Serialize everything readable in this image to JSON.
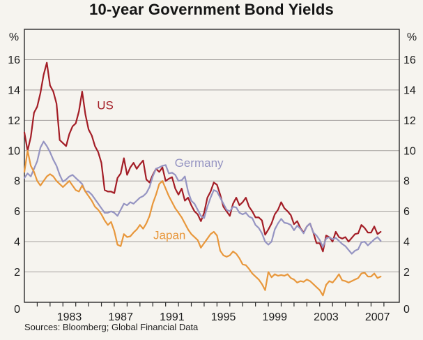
{
  "title": "10-year Government Bond Yields",
  "footer": {
    "sources": "Sources: Bloomberg; Global Financial Data"
  },
  "colors": {
    "background": "#f6f4ef",
    "gridline": "#a29e9c",
    "frame": "#2b2b2b",
    "text": "#1c1c1c",
    "us": "#a31d26",
    "germany": "#9594c2",
    "japan": "#e8973b"
  },
  "chart_data": {
    "type": "line",
    "title": "10-year Government Bond Yields",
    "unit_label": "%",
    "x_start": 1980.0,
    "x_step": 0.25,
    "x_axis": {
      "minor_tick_start": 1981,
      "minor_tick_end": 2008,
      "label_years": [
        1983,
        1987,
        1991,
        1995,
        1999,
        2003,
        2007
      ],
      "labels_centered_mid_year": true
    },
    "y_axis": {
      "min": 0,
      "max": 18,
      "tick_step": 2,
      "labeled_ticks": [
        0,
        2,
        4,
        6,
        8,
        10,
        12,
        14,
        16
      ],
      "grid": true
    },
    "legend_position": "inline-labels",
    "series": [
      {
        "name": "US",
        "color": "#a31d26",
        "label": {
          "text": "US",
          "year": 1986.3,
          "value": 13.0
        },
        "values": [
          11.2,
          10.0,
          10.9,
          12.5,
          12.9,
          13.8,
          15.0,
          15.8,
          14.3,
          13.9,
          13.1,
          10.7,
          10.5,
          10.3,
          11.1,
          11.6,
          11.8,
          12.6,
          13.9,
          12.4,
          11.4,
          11.0,
          10.3,
          9.9,
          9.2,
          7.4,
          7.3,
          7.3,
          7.2,
          8.2,
          8.5,
          9.5,
          8.4,
          8.9,
          9.2,
          8.8,
          9.1,
          9.35,
          8.1,
          7.9,
          8.4,
          8.8,
          8.6,
          8.9,
          8.0,
          8.15,
          8.25,
          7.5,
          7.1,
          7.5,
          6.7,
          6.9,
          6.4,
          6.0,
          5.8,
          5.35,
          5.9,
          6.9,
          7.3,
          7.9,
          7.75,
          7.1,
          6.3,
          6.0,
          5.7,
          6.5,
          6.9,
          6.4,
          6.6,
          6.9,
          6.3,
          6.0,
          5.6,
          5.6,
          5.4,
          4.45,
          4.8,
          5.2,
          5.8,
          6.1,
          6.6,
          6.2,
          6.0,
          5.75,
          5.15,
          5.35,
          4.9,
          4.6,
          5.0,
          5.2,
          4.6,
          3.9,
          3.9,
          3.35,
          4.4,
          4.3,
          4.0,
          4.65,
          4.3,
          4.2,
          4.3,
          4.0,
          4.25,
          4.5,
          4.55,
          5.1,
          4.9,
          4.6,
          4.6,
          5.0,
          4.5,
          4.65
        ]
      },
      {
        "name": "Germany",
        "color": "#9594c2",
        "label": {
          "text": "Germany",
          "year": 1993.6,
          "value": 9.2
        },
        "values": [
          8.2,
          8.5,
          8.3,
          8.8,
          9.3,
          10.2,
          10.6,
          10.3,
          9.9,
          9.4,
          9.0,
          8.4,
          7.95,
          8.1,
          8.3,
          8.4,
          8.2,
          8.0,
          7.8,
          7.3,
          7.3,
          7.1,
          6.8,
          6.5,
          6.2,
          5.9,
          5.9,
          6.0,
          5.9,
          5.7,
          6.1,
          6.5,
          6.4,
          6.6,
          6.5,
          6.7,
          6.9,
          7.0,
          7.2,
          7.6,
          8.3,
          8.8,
          8.9,
          9.0,
          9.05,
          8.5,
          8.55,
          8.4,
          8.0,
          8.05,
          8.3,
          7.3,
          6.7,
          6.5,
          6.1,
          5.7,
          5.55,
          6.3,
          6.9,
          7.4,
          7.3,
          6.9,
          6.5,
          6.1,
          6.0,
          6.3,
          6.25,
          5.9,
          5.8,
          5.9,
          5.65,
          5.55,
          5.1,
          4.9,
          4.55,
          4.0,
          3.8,
          4.0,
          4.8,
          5.2,
          5.5,
          5.25,
          5.2,
          5.1,
          4.75,
          5.05,
          4.85,
          4.55,
          5.0,
          5.2,
          4.6,
          4.4,
          4.1,
          3.65,
          4.2,
          4.3,
          4.15,
          4.25,
          4.05,
          3.85,
          3.7,
          3.45,
          3.2,
          3.4,
          3.5,
          3.95,
          4.0,
          3.75,
          3.95,
          4.15,
          4.3,
          4.05
        ]
      },
      {
        "name": "Japan",
        "color": "#e8973b",
        "label": {
          "text": "Japan",
          "year": 1991.3,
          "value": 4.45
        },
        "values": [
          8.6,
          10.0,
          9.0,
          8.6,
          8.0,
          7.7,
          8.0,
          8.3,
          8.45,
          8.3,
          8.0,
          7.8,
          7.6,
          7.8,
          8.0,
          7.7,
          7.4,
          7.3,
          7.7,
          7.3,
          7.0,
          6.7,
          6.3,
          6.1,
          5.8,
          5.4,
          5.1,
          5.3,
          4.7,
          3.8,
          3.7,
          4.5,
          4.3,
          4.35,
          4.6,
          4.8,
          5.1,
          4.85,
          5.2,
          5.7,
          6.5,
          7.1,
          7.8,
          8.0,
          7.5,
          7.0,
          6.6,
          6.2,
          5.9,
          5.6,
          5.2,
          4.8,
          4.5,
          4.3,
          4.1,
          3.6,
          3.9,
          4.2,
          4.5,
          4.65,
          4.4,
          3.4,
          3.1,
          3.0,
          3.1,
          3.35,
          3.2,
          2.9,
          2.5,
          2.45,
          2.2,
          1.9,
          1.7,
          1.5,
          1.2,
          0.8,
          2.0,
          1.65,
          1.85,
          1.75,
          1.8,
          1.75,
          1.85,
          1.6,
          1.5,
          1.3,
          1.4,
          1.35,
          1.5,
          1.4,
          1.2,
          1.0,
          0.8,
          0.45,
          1.15,
          1.4,
          1.3,
          1.55,
          1.85,
          1.45,
          1.4,
          1.3,
          1.4,
          1.5,
          1.6,
          1.9,
          1.95,
          1.7,
          1.7,
          1.9,
          1.6,
          1.7
        ]
      }
    ]
  }
}
